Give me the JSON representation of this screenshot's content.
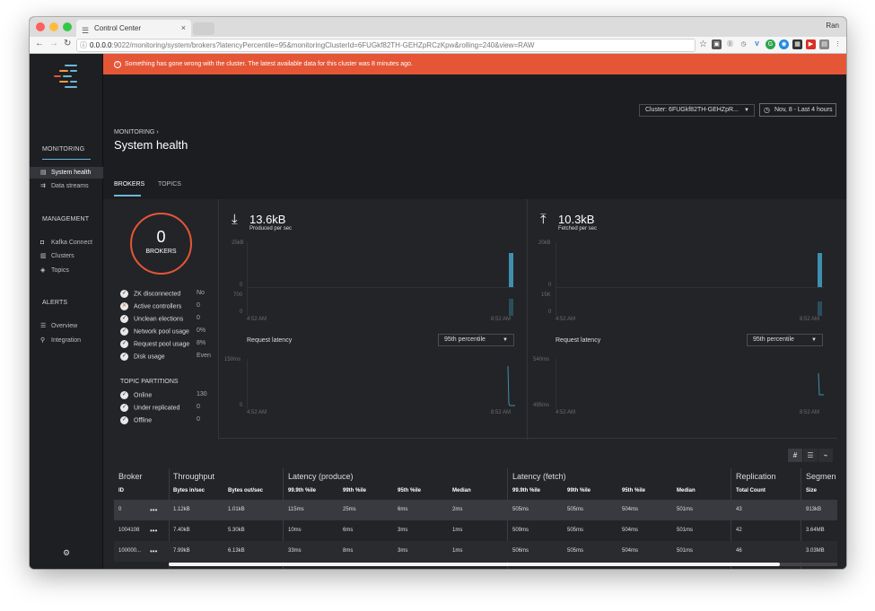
{
  "browser": {
    "tab_title": "Control Center",
    "user": "Ran",
    "url_host": "0.0.0.0",
    "url_rest": ":9022/monitoring/system/brokers?latencyPercentile=95&monitoringClusterId=6FUGkf82TH-GEHZpRCzKpw&rolling=240&view=RAW"
  },
  "sidebar": {
    "sections": [
      {
        "title": "MONITORING",
        "items": [
          {
            "label": "System health",
            "icon": "▤"
          },
          {
            "label": "Data streams",
            "icon": "⇉"
          }
        ]
      },
      {
        "title": "MANAGEMENT",
        "items": [
          {
            "label": "Kafka Connect",
            "icon": "◘"
          },
          {
            "label": "Clusters",
            "icon": "▥"
          },
          {
            "label": "Topics",
            "icon": "◈"
          }
        ]
      },
      {
        "title": "ALERTS",
        "items": [
          {
            "label": "Overview",
            "icon": "☰"
          },
          {
            "label": "Integration",
            "icon": "⚲"
          }
        ]
      }
    ],
    "settings_icon": "⚙"
  },
  "banner": {
    "text": "Something has gone wrong with the cluster. The latest available data for this cluster was 8 minutes ago.",
    "color": "#e55637"
  },
  "header": {
    "cluster_select": "Cluster: 6FUGkf82TH-GEHZpR...",
    "time_button": "Nov, 8 - Last 4 hours",
    "breadcrumb": "MONITORING ›",
    "title": "System health",
    "tabs": [
      "BROKERS",
      "TOPICS"
    ]
  },
  "summary": {
    "broker_count": "0",
    "broker_label": "BROKERS",
    "checks": [
      {
        "label": "ZK disconnected",
        "value": "No",
        "status": "ok"
      },
      {
        "label": "Active controllers",
        "value": "0",
        "status": "bad"
      },
      {
        "label": "Unclean elections",
        "value": "0",
        "status": "ok"
      },
      {
        "label": "Network pool usage",
        "value": "0%",
        "status": "ok"
      },
      {
        "label": "Request pool usage",
        "value": "8%",
        "status": "ok"
      },
      {
        "label": "Disk usage",
        "value": "Even",
        "status": "ok"
      }
    ],
    "partitions_title": "TOPIC PARTITIONS",
    "partitions": [
      {
        "label": "Online",
        "value": "130"
      },
      {
        "label": "Under replicated",
        "value": "0"
      },
      {
        "label": "Offline",
        "value": "0"
      }
    ]
  },
  "produced": {
    "value": "13.6kB",
    "label": "Produced per sec",
    "y_top": "25kB",
    "y_zero": "0",
    "y2_top": "700",
    "y2_zero": "0",
    "x_start": "4:52 AM",
    "x_end": "8:52 AM",
    "latency_label": "Request latency",
    "percentile": "95th percentile",
    "lat_top": "150ms",
    "lat_bottom": "0",
    "lat_x_start": "4:52 AM",
    "lat_x_end": "8:52 AM"
  },
  "fetched": {
    "value": "10.3kB",
    "label": "Fetched per sec",
    "y_top": "20kB",
    "y_zero": "0",
    "y2_top": "15K",
    "y2_zero": "0",
    "x_start": "4:52 AM",
    "x_end": "8:52 AM",
    "latency_label": "Request latency",
    "percentile": "95th percentile",
    "lat_top": "540ms",
    "lat_bottom": "495ms",
    "lat_x_start": "4:52 AM",
    "lat_x_end": "8:52 AM"
  },
  "table": {
    "groups": [
      "Broker",
      "Throughput",
      "Latency (produce)",
      "Latency (fetch)",
      "Replication",
      "Segmen"
    ],
    "columns": [
      "ID",
      "Bytes in/sec",
      "Bytes out/sec",
      "99.9th %ile",
      "99th %ile",
      "95th %ile",
      "Median",
      "99.9th %ile",
      "99th %ile",
      "95th %ile",
      "Median",
      "Total Count",
      "Size"
    ],
    "rows": [
      [
        "0",
        "1.12kB",
        "1.01kB",
        "115ms",
        "25ms",
        "6ms",
        "2ms",
        "505ms",
        "505ms",
        "504ms",
        "501ms",
        "43",
        "913kB"
      ],
      [
        "1004108",
        "7.40kB",
        "5.30kB",
        "10ms",
        "6ms",
        "3ms",
        "1ms",
        "509ms",
        "505ms",
        "504ms",
        "501ms",
        "42",
        "3.64MB"
      ],
      [
        "100000...",
        "7.99kB",
        "6.13kB",
        "33ms",
        "8ms",
        "3ms",
        "1ms",
        "506ms",
        "505ms",
        "504ms",
        "501ms",
        "46",
        "3.03MB"
      ]
    ]
  }
}
